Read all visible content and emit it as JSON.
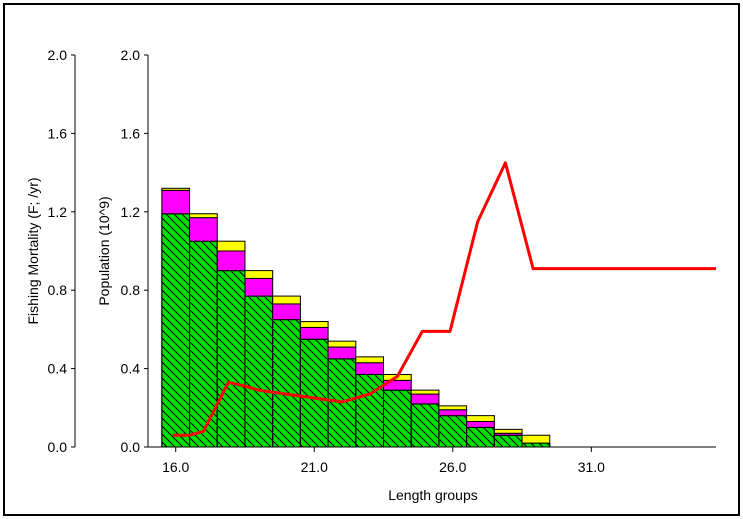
{
  "chart_data": {
    "type": "bar",
    "xlabel": "Length groups",
    "y_left_label": "Fishing Mortality (F; /yr)",
    "y_right_label": "Population (10^9)",
    "xlim": [
      15.0,
      35.5
    ],
    "ylim_left": [
      0.0,
      2.0
    ],
    "ylim_right": [
      0.0,
      2.0
    ],
    "x_ticks": [
      "16.0",
      "21.0",
      "26.0",
      "31.0"
    ],
    "y_left_ticks": [
      "0.0",
      "0.4",
      "0.8",
      "1.2",
      "1.6",
      "2.0"
    ],
    "y_right_ticks": [
      "0.0",
      "0.4",
      "0.8",
      "1.2",
      "1.6",
      "2.0"
    ],
    "bar_width": 1.0,
    "categories": [
      16,
      17,
      18,
      19,
      20,
      21,
      22,
      23,
      24,
      25,
      26,
      27,
      28,
      29
    ],
    "series": [
      {
        "color": "#00e000",
        "hatch": true,
        "values": [
          1.19,
          1.05,
          0.9,
          0.77,
          0.65,
          0.55,
          0.45,
          0.37,
          0.29,
          0.22,
          0.16,
          0.1,
          0.06,
          0.02
        ]
      },
      {
        "color": "#ff00ff",
        "values": [
          0.12,
          0.12,
          0.1,
          0.09,
          0.08,
          0.06,
          0.06,
          0.06,
          0.05,
          0.05,
          0.03,
          0.03,
          0.01,
          0.0
        ]
      },
      {
        "color": "#ffff00",
        "values": [
          0.01,
          0.02,
          0.05,
          0.04,
          0.04,
          0.03,
          0.03,
          0.03,
          0.03,
          0.02,
          0.02,
          0.03,
          0.02,
          0.04
        ]
      }
    ],
    "line": {
      "color": "#ff0000",
      "axis": "left",
      "x": [
        15.9,
        16.5,
        17.0,
        17.9,
        18.5,
        19.0,
        20.0,
        21.0,
        22.0,
        23.0,
        24.0,
        24.9,
        25.9,
        26.9,
        27.9,
        28.9,
        35.5
      ],
      "y": [
        0.06,
        0.06,
        0.08,
        0.33,
        0.31,
        0.29,
        0.27,
        0.25,
        0.23,
        0.27,
        0.36,
        0.59,
        0.59,
        1.15,
        1.45,
        0.91,
        0.91
      ]
    }
  }
}
